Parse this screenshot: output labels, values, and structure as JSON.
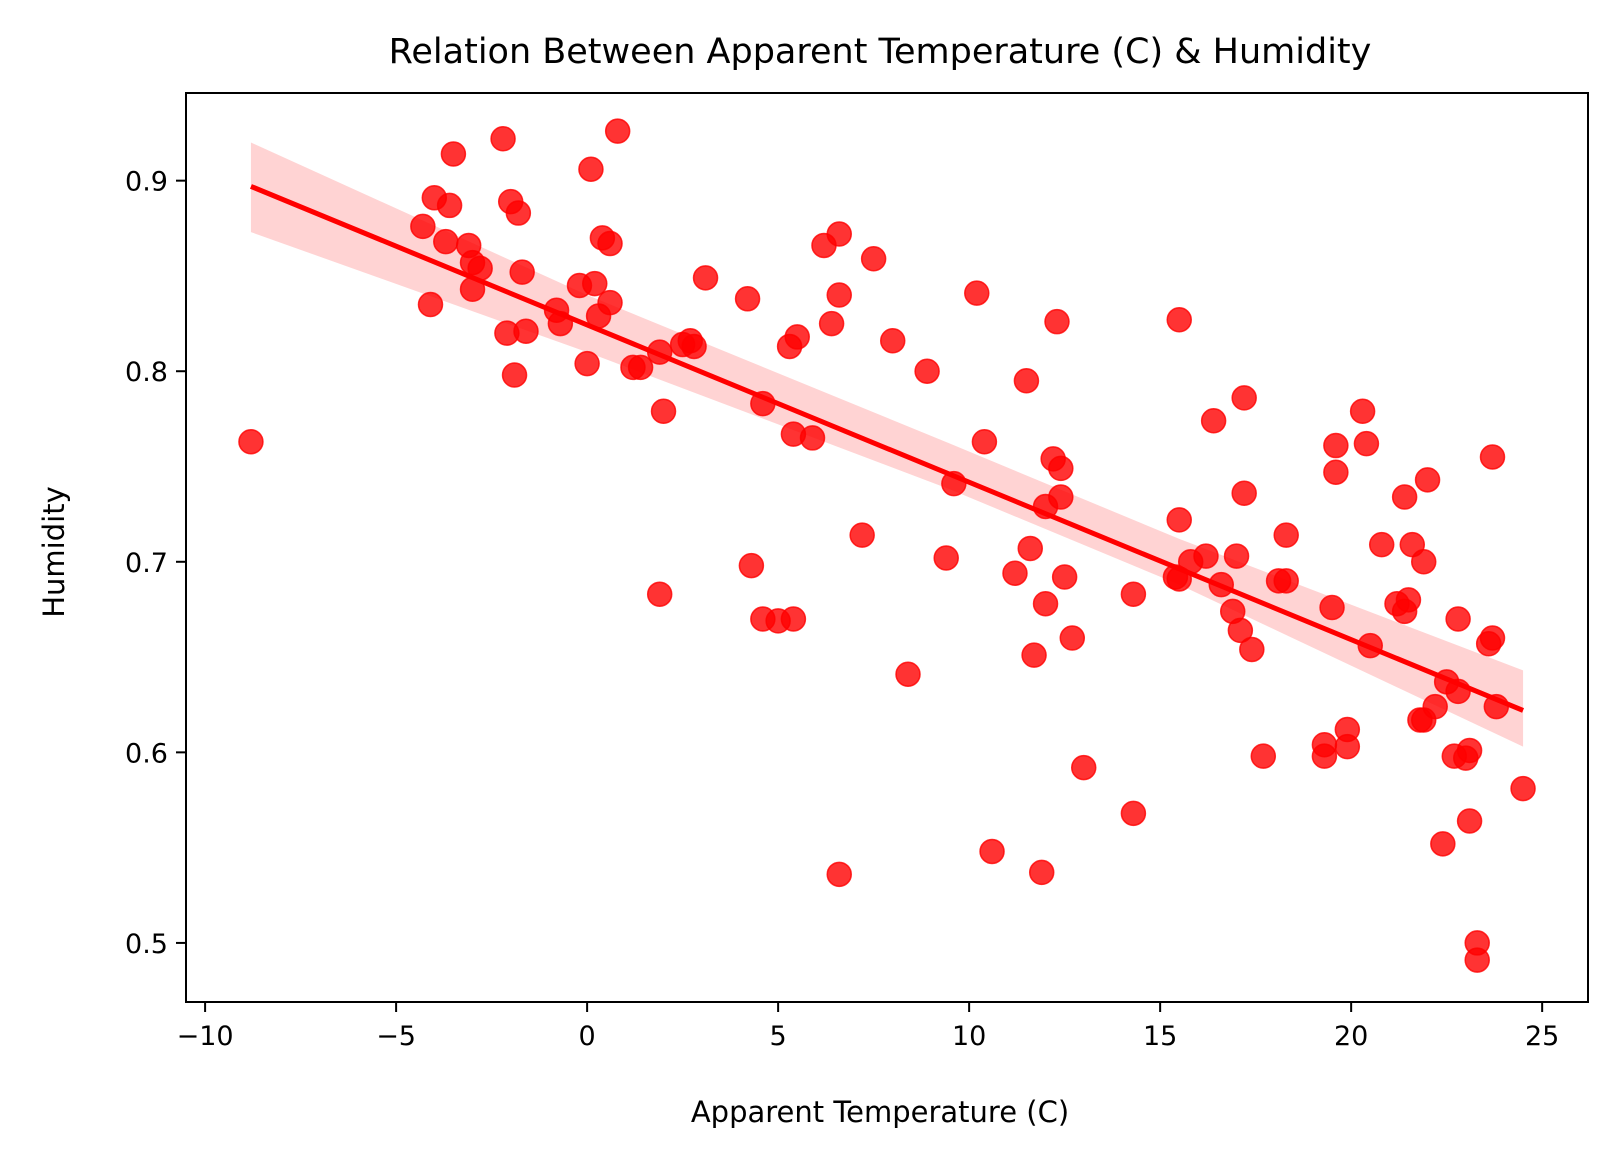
{
  "chart_data": {
    "type": "scatter",
    "title": "Relation Between Apparent Temperature (C) & Humidity",
    "xlabel": "Apparent Temperature (C)",
    "ylabel": "Humidity",
    "xlim": [
      -10.5,
      26.2
    ],
    "ylim": [
      0.469,
      0.946
    ],
    "x_ticks": [
      -10,
      -5,
      0,
      5,
      10,
      15,
      20,
      25
    ],
    "x_tick_labels": [
      "−10",
      "−5",
      "0",
      "5",
      "10",
      "15",
      "20",
      "25"
    ],
    "y_ticks": [
      0.5,
      0.6,
      0.7,
      0.8,
      0.9
    ],
    "y_tick_labels": [
      "0.5",
      "0.6",
      "0.7",
      "0.8",
      "0.9"
    ],
    "grid": false,
    "colors": {
      "points": "#ff0000",
      "regression_line": "#ff0000",
      "confidence_band": "#ffc8c8"
    },
    "regression": {
      "x": [
        -8.8,
        24.5
      ],
      "y": [
        0.897,
        0.622
      ],
      "band_upper": [
        [
          -8.8,
          0.92
        ],
        [
          0,
          0.84
        ],
        [
          9.5,
          0.762
        ],
        [
          15.5,
          0.712
        ],
        [
          24.5,
          0.643
        ]
      ],
      "band_lower": [
        [
          -8.8,
          0.873
        ],
        [
          0,
          0.81
        ],
        [
          9.5,
          0.738
        ],
        [
          15.5,
          0.688
        ],
        [
          24.5,
          0.603
        ]
      ]
    },
    "points": [
      [
        -8.8,
        0.763
      ],
      [
        -4.3,
        0.876
      ],
      [
        -4.1,
        0.835
      ],
      [
        -4.0,
        0.891
      ],
      [
        -3.7,
        0.868
      ],
      [
        -3.6,
        0.887
      ],
      [
        -3.5,
        0.914
      ],
      [
        -3.1,
        0.866
      ],
      [
        -3.0,
        0.857
      ],
      [
        -3.0,
        0.843
      ],
      [
        -2.8,
        0.854
      ],
      [
        -2.2,
        0.922
      ],
      [
        -2.1,
        0.82
      ],
      [
        -2.0,
        0.889
      ],
      [
        -1.9,
        0.798
      ],
      [
        -1.8,
        0.883
      ],
      [
        -1.7,
        0.852
      ],
      [
        -1.6,
        0.821
      ],
      [
        -0.8,
        0.832
      ],
      [
        -0.7,
        0.825
      ],
      [
        -0.2,
        0.845
      ],
      [
        0.0,
        0.804
      ],
      [
        0.1,
        0.906
      ],
      [
        0.2,
        0.846
      ],
      [
        0.3,
        0.829
      ],
      [
        0.4,
        0.87
      ],
      [
        0.6,
        0.836
      ],
      [
        0.6,
        0.867
      ],
      [
        0.8,
        0.926
      ],
      [
        1.2,
        0.802
      ],
      [
        1.4,
        0.802
      ],
      [
        1.9,
        0.683
      ],
      [
        1.9,
        0.81
      ],
      [
        2.0,
        0.779
      ],
      [
        2.5,
        0.814
      ],
      [
        2.7,
        0.816
      ],
      [
        2.8,
        0.813
      ],
      [
        3.1,
        0.849
      ],
      [
        4.2,
        0.838
      ],
      [
        4.3,
        0.698
      ],
      [
        4.6,
        0.783
      ],
      [
        4.6,
        0.67
      ],
      [
        5.0,
        0.669
      ],
      [
        5.3,
        0.813
      ],
      [
        5.4,
        0.767
      ],
      [
        5.4,
        0.67
      ],
      [
        5.5,
        0.818
      ],
      [
        5.9,
        0.765
      ],
      [
        6.2,
        0.866
      ],
      [
        6.4,
        0.825
      ],
      [
        6.6,
        0.872
      ],
      [
        6.6,
        0.84
      ],
      [
        6.6,
        0.536
      ],
      [
        7.2,
        0.714
      ],
      [
        7.5,
        0.859
      ],
      [
        8.0,
        0.816
      ],
      [
        8.4,
        0.641
      ],
      [
        8.9,
        0.8
      ],
      [
        9.4,
        0.702
      ],
      [
        9.6,
        0.741
      ],
      [
        10.2,
        0.841
      ],
      [
        10.4,
        0.763
      ],
      [
        10.6,
        0.548
      ],
      [
        11.2,
        0.694
      ],
      [
        11.5,
        0.795
      ],
      [
        11.6,
        0.707
      ],
      [
        11.7,
        0.651
      ],
      [
        11.9,
        0.537
      ],
      [
        12.0,
        0.678
      ],
      [
        12.0,
        0.729
      ],
      [
        12.2,
        0.754
      ],
      [
        12.3,
        0.826
      ],
      [
        12.4,
        0.749
      ],
      [
        12.4,
        0.734
      ],
      [
        12.5,
        0.692
      ],
      [
        12.7,
        0.66
      ],
      [
        13.0,
        0.592
      ],
      [
        14.3,
        0.683
      ],
      [
        14.3,
        0.568
      ],
      [
        15.4,
        0.692
      ],
      [
        15.5,
        0.691
      ],
      [
        15.5,
        0.722
      ],
      [
        15.5,
        0.827
      ],
      [
        15.8,
        0.7
      ],
      [
        16.2,
        0.703
      ],
      [
        16.4,
        0.774
      ],
      [
        16.6,
        0.688
      ],
      [
        16.9,
        0.674
      ],
      [
        17.0,
        0.703
      ],
      [
        17.1,
        0.664
      ],
      [
        17.2,
        0.736
      ],
      [
        17.2,
        0.786
      ],
      [
        17.4,
        0.654
      ],
      [
        17.7,
        0.598
      ],
      [
        18.1,
        0.69
      ],
      [
        18.3,
        0.69
      ],
      [
        18.3,
        0.714
      ],
      [
        19.3,
        0.604
      ],
      [
        19.3,
        0.598
      ],
      [
        19.5,
        0.676
      ],
      [
        19.6,
        0.747
      ],
      [
        19.6,
        0.761
      ],
      [
        19.9,
        0.603
      ],
      [
        19.9,
        0.612
      ],
      [
        20.3,
        0.779
      ],
      [
        20.4,
        0.762
      ],
      [
        20.5,
        0.656
      ],
      [
        20.8,
        0.709
      ],
      [
        21.2,
        0.678
      ],
      [
        21.4,
        0.674
      ],
      [
        21.4,
        0.734
      ],
      [
        21.5,
        0.68
      ],
      [
        21.6,
        0.709
      ],
      [
        21.8,
        0.617
      ],
      [
        21.9,
        0.617
      ],
      [
        21.9,
        0.7
      ],
      [
        22.0,
        0.743
      ],
      [
        22.2,
        0.624
      ],
      [
        22.4,
        0.552
      ],
      [
        22.5,
        0.637
      ],
      [
        22.7,
        0.598
      ],
      [
        22.8,
        0.67
      ],
      [
        22.8,
        0.632
      ],
      [
        23.0,
        0.597
      ],
      [
        23.1,
        0.601
      ],
      [
        23.1,
        0.564
      ],
      [
        23.3,
        0.5
      ],
      [
        23.3,
        0.491
      ],
      [
        23.6,
        0.657
      ],
      [
        23.7,
        0.755
      ],
      [
        23.7,
        0.66
      ],
      [
        23.8,
        0.624
      ],
      [
        24.5,
        0.581
      ]
    ]
  }
}
